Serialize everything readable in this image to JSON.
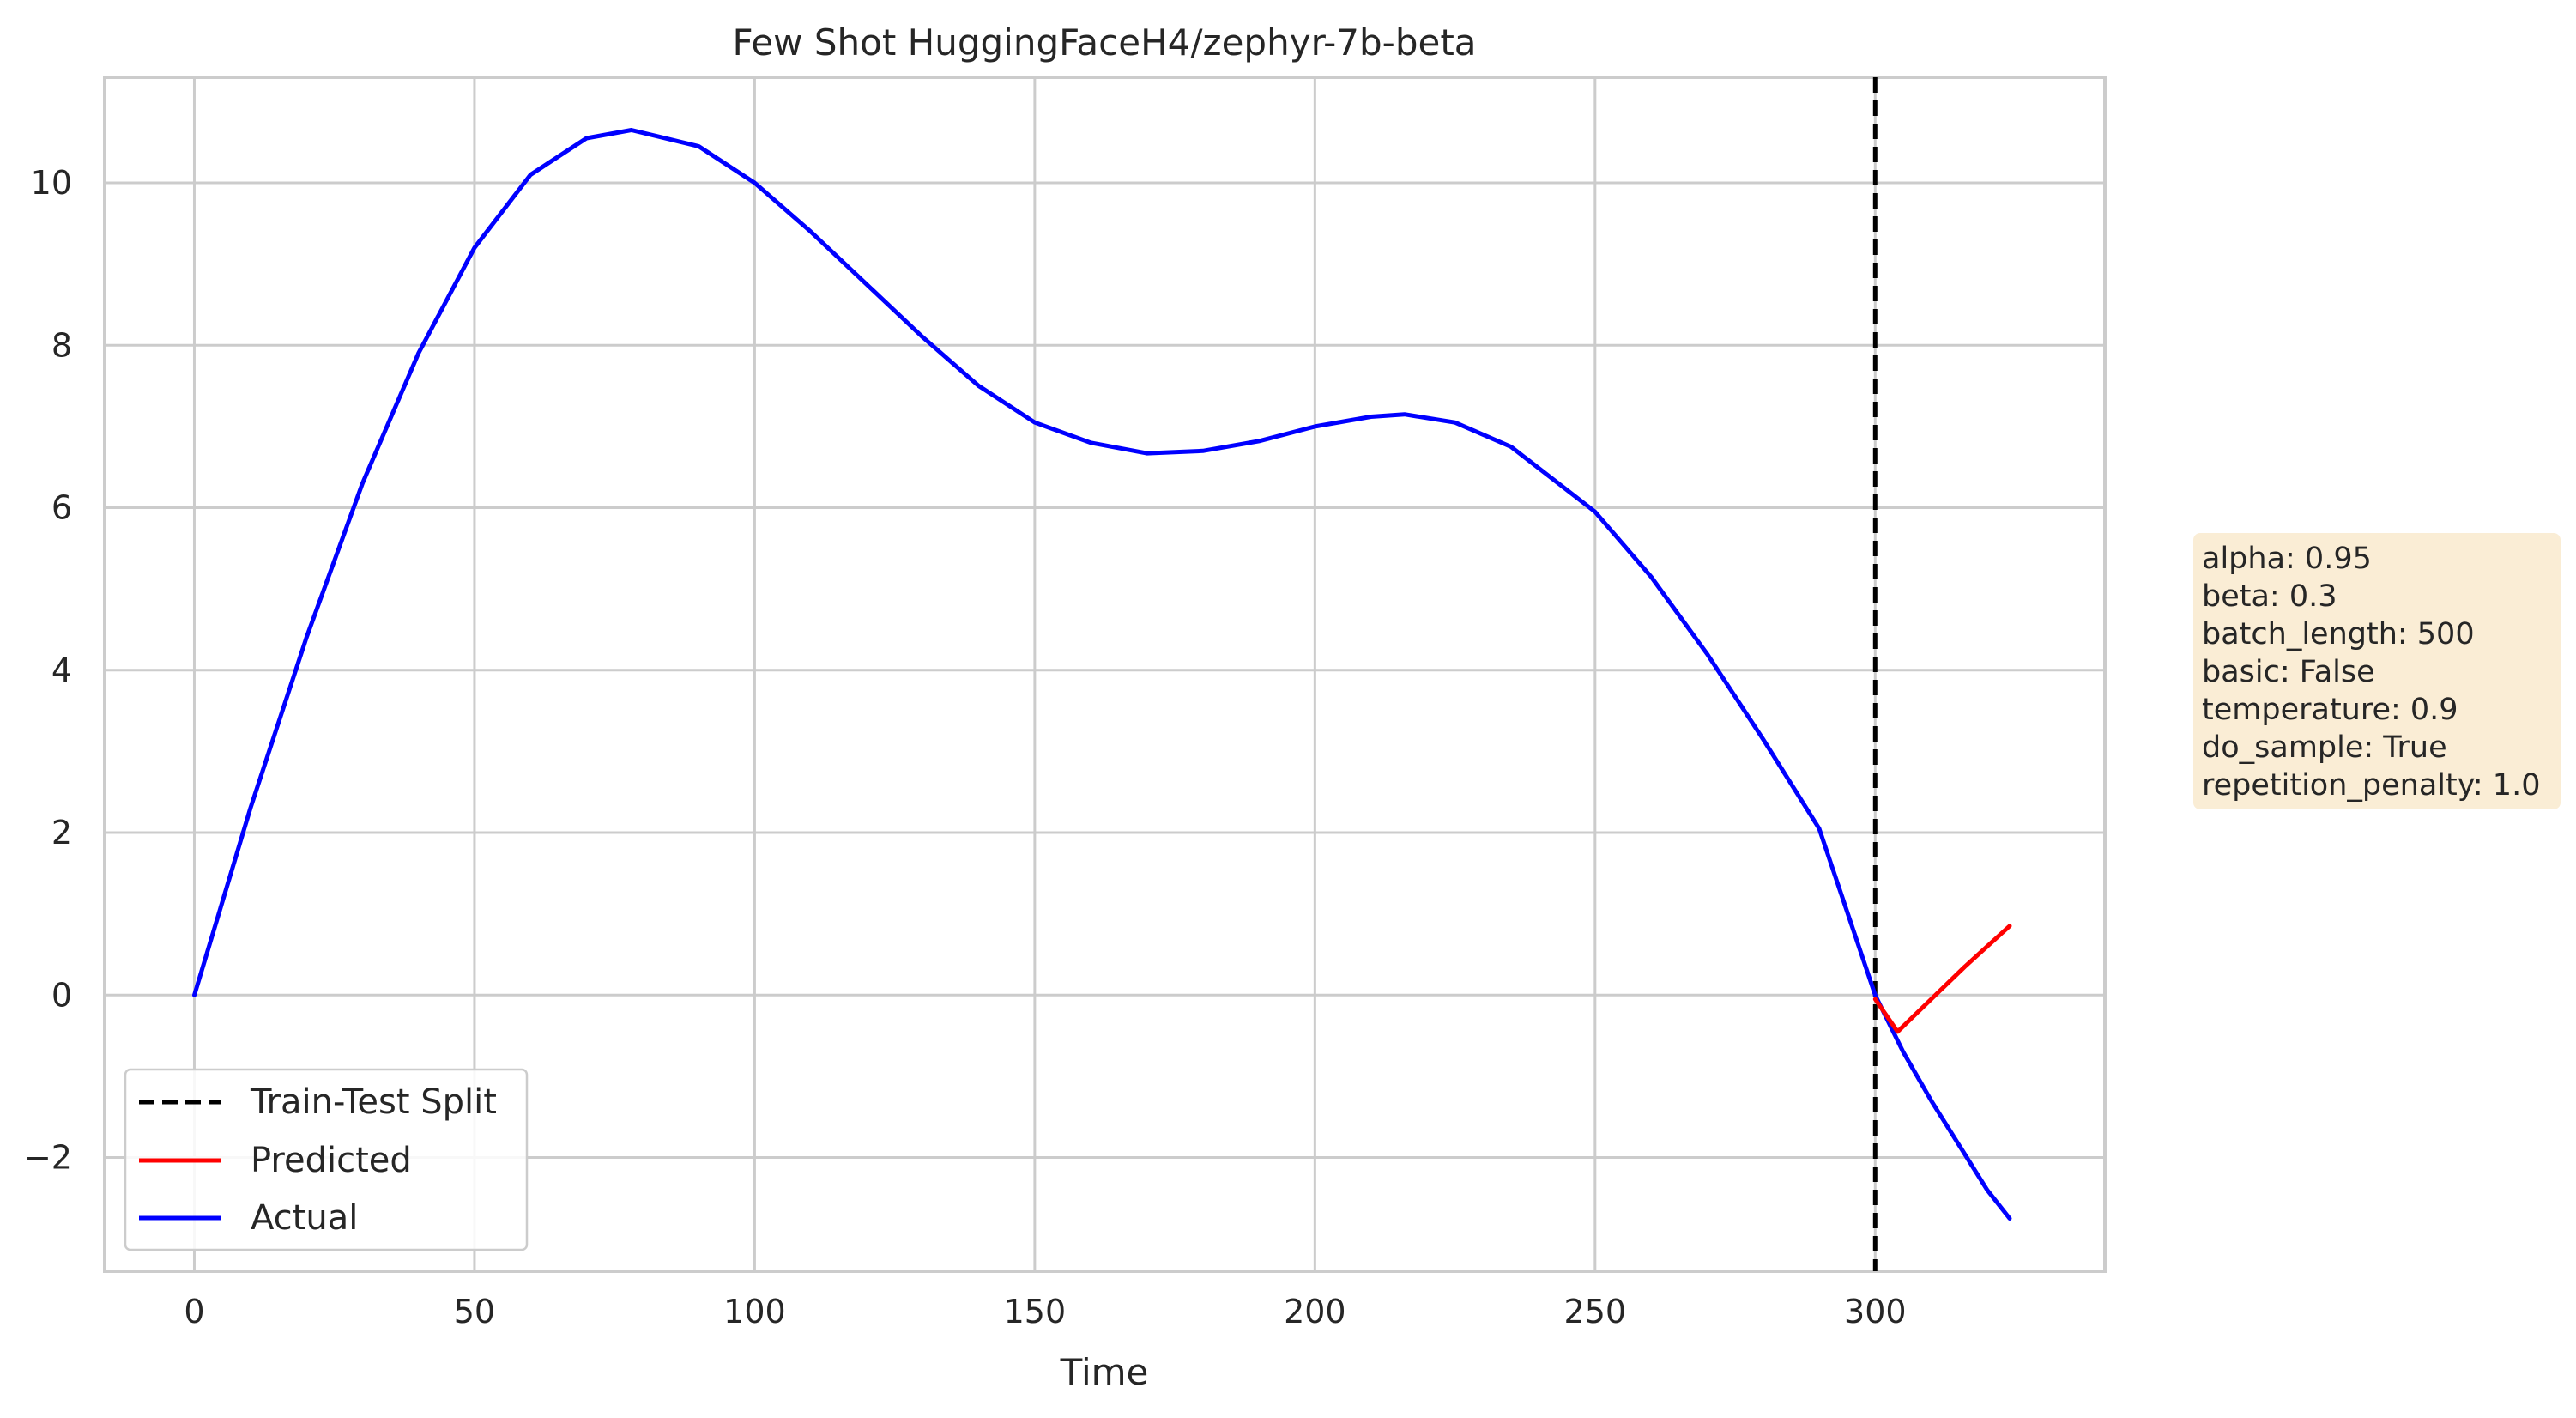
{
  "chart_data": {
    "type": "line",
    "title": "Few Shot HuggingFaceH4/zephyr-7b-beta",
    "xlabel": "Time",
    "ylabel": "",
    "xlim": [
      -16,
      341
    ],
    "ylim": [
      -3.4,
      11.3
    ],
    "xticks": [
      0,
      50,
      100,
      150,
      200,
      250,
      300
    ],
    "yticks": [
      -2,
      0,
      2,
      4,
      6,
      8,
      10
    ],
    "grid": true,
    "legend_position": "lower-left",
    "split": {
      "name": "Train-Test Split",
      "x": 300,
      "style": "dashed",
      "color": "#000000"
    },
    "series": [
      {
        "name": "Actual",
        "color": "#0000ff",
        "x": [
          0,
          10,
          20,
          30,
          40,
          50,
          60,
          70,
          78,
          90,
          100,
          110,
          120,
          130,
          140,
          150,
          160,
          170,
          180,
          190,
          200,
          210,
          216,
          225,
          235,
          250,
          260,
          270,
          280,
          290,
          300,
          305,
          310,
          315,
          320,
          324
        ],
        "values": [
          0,
          2.3,
          4.4,
          6.3,
          7.9,
          9.2,
          10.1,
          10.55,
          10.65,
          10.45,
          10.0,
          9.4,
          8.75,
          8.1,
          7.5,
          7.05,
          6.8,
          6.67,
          6.7,
          6.82,
          7.0,
          7.12,
          7.15,
          7.05,
          6.75,
          5.95,
          5.15,
          4.2,
          3.15,
          2.05,
          0.0,
          -0.7,
          -1.3,
          -1.85,
          -2.4,
          -2.75
        ]
      },
      {
        "name": "Predicted",
        "color": "#ff0000",
        "x": [
          300,
          304,
          310,
          316,
          320,
          324
        ],
        "values": [
          -0.05,
          -0.45,
          -0.05,
          0.35,
          0.6,
          0.85
        ]
      }
    ]
  },
  "params_box": {
    "lines": [
      "alpha: 0.95",
      "beta: 0.3",
      "batch_length: 500",
      "basic: False",
      "temperature: 0.9",
      "do_sample: True",
      "repetition_penalty: 1.0"
    ]
  }
}
